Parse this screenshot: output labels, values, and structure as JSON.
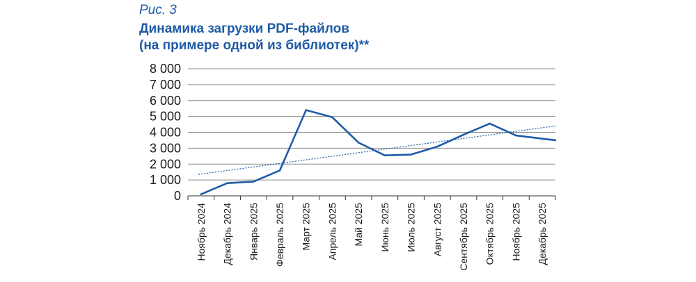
{
  "figure": {
    "label": "Рис. 3",
    "title_line1": "Динамика загрузки PDF-файлов",
    "title_line2": "(на примере одной из библиотек)**"
  },
  "colors": {
    "series": "#1f5ba6",
    "trend": "#1f5ba6",
    "grid": "#8c8c8c",
    "axis": "#333333"
  },
  "chart_data": {
    "type": "line",
    "title": "Динамика загрузки PDF-файлов (на примере одной из библиотек)**",
    "xlabel": "",
    "ylabel": "",
    "categories": [
      "Ноябрь 2024",
      "Декабрь 2024",
      "Январь 2025",
      "Февраль 2025",
      "Март 2025",
      "Апрель 2025",
      "Май 2025",
      "Июнь 2025",
      "Июль 2025",
      "Август 2025",
      "Сентябрь 2025",
      "Октябрь 2025",
      "Ноябрь 2025",
      "Декабрь 2025"
    ],
    "series": [
      {
        "values": [
          100,
          800,
          900,
          1600,
          5400,
          4950,
          3350,
          2550,
          2600,
          3100,
          3850,
          4550,
          3800,
          3600
        ],
        "style": "solid"
      }
    ],
    "trendline": {
      "style": "dotted",
      "start": 1350,
      "end": 4400
    },
    "yticks": [
      "8 000",
      "7 000",
      "6 000",
      "5 000",
      "4 000",
      "3 000",
      "2 000",
      "1 000",
      "0"
    ],
    "ylim": [
      0,
      8000
    ],
    "grid": true,
    "legend": "none"
  }
}
